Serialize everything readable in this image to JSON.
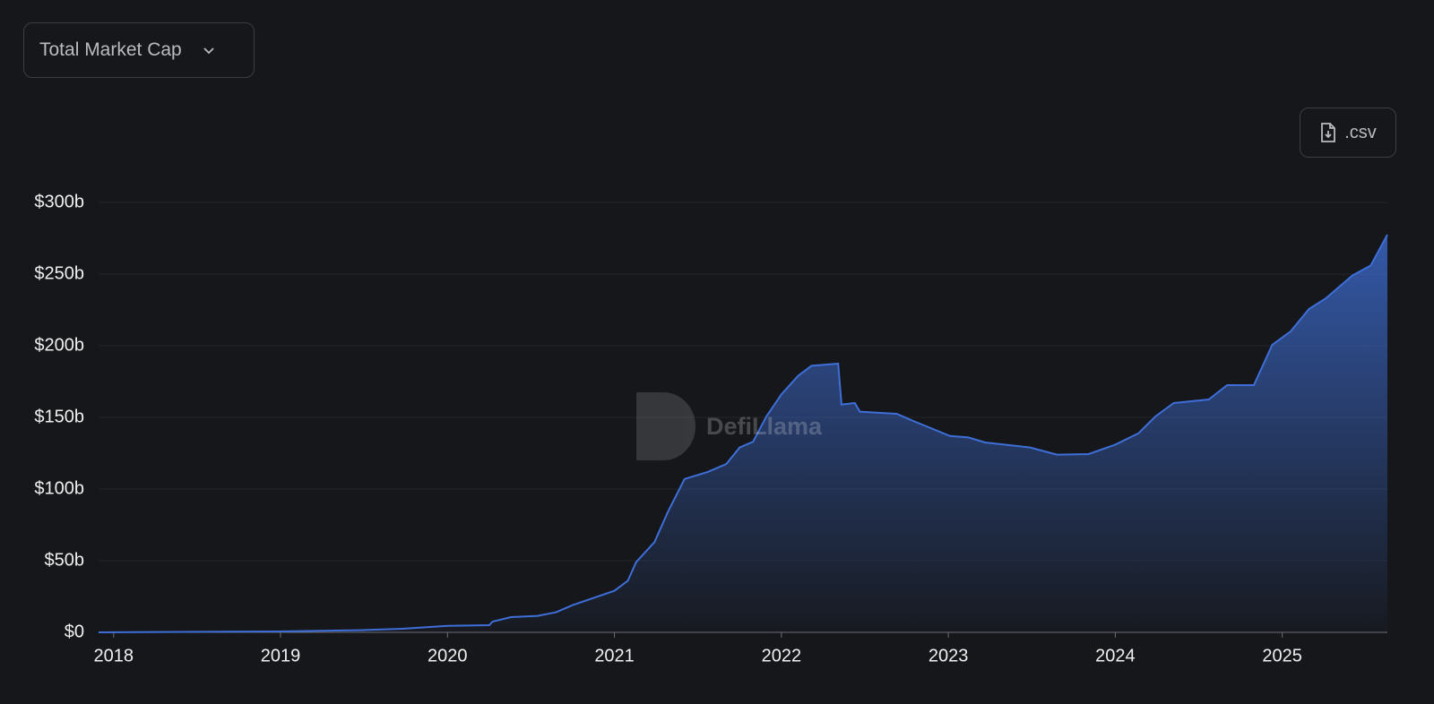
{
  "controls": {
    "dropdown": "Total Market Cap",
    "csv_button": ".csv"
  },
  "watermark": "DefiLlama",
  "chart_data": {
    "type": "area",
    "color": "#3e6fd8",
    "x": [
      2017.91,
      2019.0,
      2019.47,
      2019.73,
      2020.0,
      2020.25,
      2020.27,
      2020.38,
      2020.54,
      2020.65,
      2020.75,
      2021.0,
      2021.08,
      2021.13,
      2021.24,
      2021.32,
      2021.42,
      2021.56,
      2021.67,
      2021.75,
      2021.83,
      2021.91,
      2022.0,
      2022.1,
      2022.18,
      2022.34,
      2022.36,
      2022.44,
      2022.47,
      2022.69,
      2022.79,
      2023.01,
      2023.12,
      2023.22,
      2023.49,
      2023.65,
      2023.84,
      2024.0,
      2024.14,
      2024.24,
      2024.35,
      2024.56,
      2024.67,
      2024.83,
      2024.94,
      2025.05,
      2025.16,
      2025.26,
      2025.42,
      2025.53,
      2025.63
    ],
    "values": [
      0,
      0.6,
      1.5,
      2.5,
      4.5,
      5,
      7.5,
      10.6,
      11.5,
      14,
      19,
      29,
      36,
      49,
      63,
      84,
      107,
      112,
      117.5,
      129,
      133,
      150.6,
      166,
      179,
      186,
      187.5,
      159,
      160,
      154,
      152.5,
      147.5,
      137,
      136,
      132.5,
      129,
      124,
      124.4,
      131,
      139,
      150.6,
      160,
      162.5,
      172.5,
      172.5,
      200.6,
      210,
      225.6,
      233,
      249,
      256,
      277.5
    ],
    "xlim": [
      2017.91,
      2025.63
    ],
    "xticks": [
      2018,
      2019,
      2020,
      2021,
      2022,
      2023,
      2024,
      2025
    ],
    "ylim": [
      0,
      300
    ],
    "yticks": [
      {
        "value": 0,
        "label": "$0"
      },
      {
        "value": 50,
        "label": "$50b"
      },
      {
        "value": 100,
        "label": "$100b"
      },
      {
        "value": 150,
        "label": "$150b"
      },
      {
        "value": 200,
        "label": "$200b"
      },
      {
        "value": 250,
        "label": "$250b"
      },
      {
        "value": 300,
        "label": "$300b"
      }
    ],
    "grid": true
  }
}
